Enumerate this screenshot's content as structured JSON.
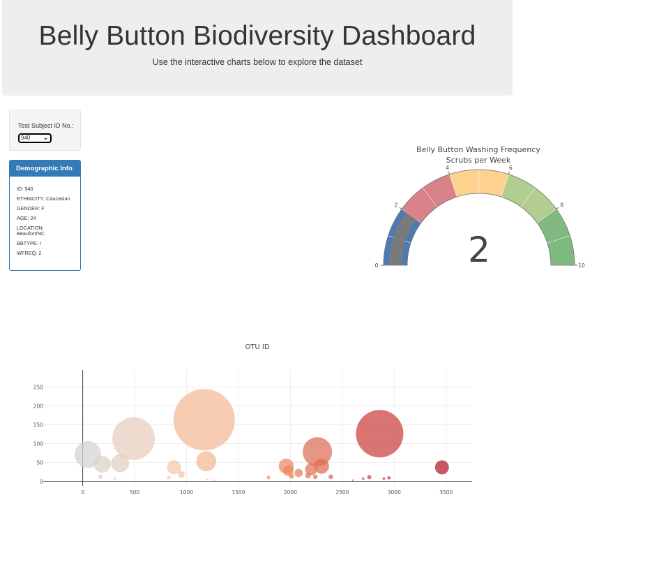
{
  "header": {
    "title": "Belly Button Biodiversity Dashboard",
    "subtitle": "Use the interactive charts below to explore the dataset"
  },
  "selector": {
    "label": "Test Subject ID No.:",
    "value": "940"
  },
  "demographic": {
    "title": "Demographic Info",
    "lines": [
      "ID: 940",
      "ETHNICITY: Caucasian",
      "GENDER: F",
      "AGE: 24",
      "LOCATION: Beaufort/NC",
      "BBTYPE: I",
      "WFREQ: 2"
    ]
  },
  "chart_data": [
    {
      "type": "gauge",
      "title_line1": "Belly Button Washing Frequency",
      "title_line2": "Scrubs per Week",
      "value": 2,
      "range": [
        0,
        10
      ],
      "ticks": [
        "0",
        "2",
        "4",
        "6",
        "8",
        "10"
      ],
      "bands": [
        {
          "from": 0,
          "to": 1,
          "color": "#4e7ab3"
        },
        {
          "from": 1,
          "to": 2,
          "color": "#4e7ab3"
        },
        {
          "from": 2,
          "to": 3,
          "color": "#d9828a"
        },
        {
          "from": 3,
          "to": 4,
          "color": "#d9828a"
        },
        {
          "from": 4,
          "to": 5,
          "color": "#fdd28e"
        },
        {
          "from": 5,
          "to": 6,
          "color": "#fdd28e"
        },
        {
          "from": 6,
          "to": 7,
          "color": "#b1cd8f"
        },
        {
          "from": 7,
          "to": 8,
          "color": "#b1cd8f"
        },
        {
          "from": 8,
          "to": 9,
          "color": "#80ba80"
        },
        {
          "from": 9,
          "to": 10,
          "color": "#80ba80"
        }
      ],
      "bar_color": "#7a7a7a"
    },
    {
      "type": "scatter",
      "title": "OTU ID",
      "xlim": [
        -380,
        3750
      ],
      "ylim": [
        -12,
        295
      ],
      "xticks": [
        0,
        500,
        1000,
        1500,
        2000,
        2500,
        3000,
        3500
      ],
      "yticks": [
        0,
        50,
        100,
        150,
        200,
        250
      ],
      "colorscale": [
        "#d3d3d3",
        "#f4c8a8",
        "#f19a6c",
        "#d24f43",
        "#b5132a"
      ],
      "points": [
        {
          "x": 50,
          "y": 71,
          "s": 71
        },
        {
          "x": 190,
          "y": 45,
          "s": 45
        },
        {
          "x": 360,
          "y": 48,
          "s": 48
        },
        {
          "x": 490,
          "y": 113,
          "s": 113
        },
        {
          "x": 170,
          "y": 12,
          "s": 12
        },
        {
          "x": 310,
          "y": 7,
          "s": 7
        },
        {
          "x": 880,
          "y": 37,
          "s": 37
        },
        {
          "x": 950,
          "y": 18,
          "s": 18
        },
        {
          "x": 830,
          "y": 10,
          "s": 10
        },
        {
          "x": 1170,
          "y": 163,
          "s": 163
        },
        {
          "x": 1190,
          "y": 53,
          "s": 53
        },
        {
          "x": 1200,
          "y": 5,
          "s": 5
        },
        {
          "x": 1270,
          "y": 3,
          "s": 3
        },
        {
          "x": 1790,
          "y": 10,
          "s": 10
        },
        {
          "x": 1960,
          "y": 40,
          "s": 40
        },
        {
          "x": 1980,
          "y": 28,
          "s": 28
        },
        {
          "x": 2010,
          "y": 14,
          "s": 14
        },
        {
          "x": 2080,
          "y": 22,
          "s": 22
        },
        {
          "x": 2170,
          "y": 15,
          "s": 15
        },
        {
          "x": 2200,
          "y": 32,
          "s": 32
        },
        {
          "x": 2260,
          "y": 78,
          "s": 78
        },
        {
          "x": 2300,
          "y": 40,
          "s": 40
        },
        {
          "x": 2240,
          "y": 12,
          "s": 12
        },
        {
          "x": 2390,
          "y": 12,
          "s": 12
        },
        {
          "x": 2600,
          "y": 3,
          "s": 3
        },
        {
          "x": 2700,
          "y": 7,
          "s": 7
        },
        {
          "x": 2760,
          "y": 11,
          "s": 11
        },
        {
          "x": 2860,
          "y": 126,
          "s": 126
        },
        {
          "x": 2900,
          "y": 7,
          "s": 7
        },
        {
          "x": 2950,
          "y": 9,
          "s": 9
        },
        {
          "x": 3460,
          "y": 37,
          "s": 37
        }
      ]
    }
  ]
}
